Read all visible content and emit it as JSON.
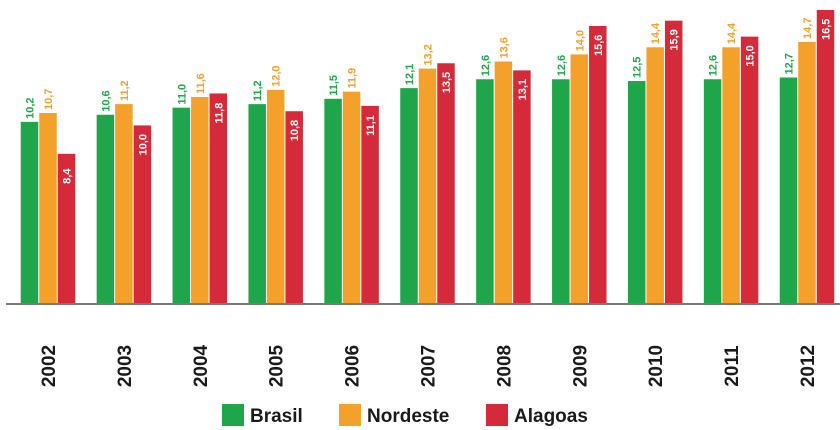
{
  "chart_data": {
    "type": "bar",
    "categories": [
      "2002",
      "2003",
      "2004",
      "2005",
      "2006",
      "2007",
      "2008",
      "2009",
      "2010",
      "2011",
      "2012"
    ],
    "series": [
      {
        "name": "Brasil",
        "color": "#1fa64a",
        "label_color": "#1fa64a",
        "values": [
          10.2,
          10.6,
          11.0,
          11.2,
          11.5,
          12.1,
          12.6,
          12.6,
          12.5,
          12.6,
          12.7
        ],
        "labels": [
          "10,2",
          "10,6",
          "11,0",
          "11,2",
          "11,5",
          "12,1",
          "12,6",
          "12,6",
          "12,5",
          "12,6",
          "12,7"
        ]
      },
      {
        "name": "Nordeste",
        "color": "#f3a12a",
        "label_color": "#f3a12a",
        "values": [
          10.7,
          11.2,
          11.6,
          12.0,
          11.9,
          13.2,
          13.6,
          14.0,
          14.4,
          14.4,
          14.7
        ],
        "labels": [
          "10,7",
          "11,2",
          "11,6",
          "12,0",
          "11,9",
          "13,2",
          "13,6",
          "14,0",
          "14,4",
          "14,4",
          "14,7"
        ]
      },
      {
        "name": "Alagoas",
        "color": "#d42a3a",
        "label_color": "#ffffff",
        "values": [
          8.4,
          10.0,
          11.8,
          10.8,
          11.1,
          13.5,
          13.1,
          15.6,
          15.9,
          15.0,
          16.5
        ],
        "labels": [
          "8,4",
          "10,0",
          "11,8",
          "10,8",
          "11,1",
          "13,5",
          "13,1",
          "15,6",
          "15,9",
          "15,0",
          "16,5"
        ]
      }
    ],
    "legend_position": "bottom",
    "grid": false,
    "ylim": [
      0,
      16.5
    ]
  }
}
